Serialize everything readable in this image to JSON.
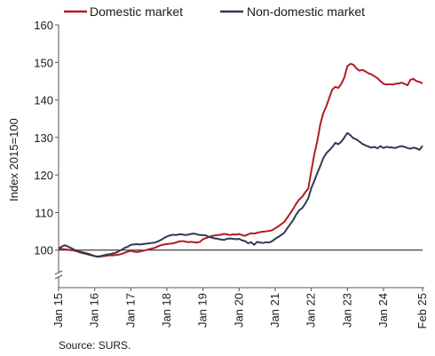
{
  "chart_data": {
    "type": "line",
    "ylabel": "Index 2015=100",
    "ylim": [
      90,
      160
    ],
    "yticks": [
      100,
      110,
      120,
      130,
      140,
      150,
      160
    ],
    "x_ticks": [
      "Jan 15",
      "Jan 16",
      "Jan 17",
      "Jan 18",
      "Jan 19",
      "Jan 20",
      "Jan 21",
      "Jan 22",
      "Jan 23",
      "Jan 24",
      "Feb 25"
    ],
    "reference_line": 100,
    "axis_break": true,
    "legend_position": "top",
    "series": [
      {
        "name": "Domestic market",
        "color": "#b01c22",
        "points": [
          [
            "2015-01",
            100.5
          ],
          [
            "2015-02",
            100.3
          ],
          [
            "2015-03",
            100.2
          ],
          [
            "2015-04",
            100.1
          ],
          [
            "2015-05",
            100.0
          ],
          [
            "2015-06",
            99.9
          ],
          [
            "2015-07",
            99.7
          ],
          [
            "2015-08",
            99.4
          ],
          [
            "2015-09",
            99.2
          ],
          [
            "2015-10",
            99.0
          ],
          [
            "2015-11",
            98.8
          ],
          [
            "2015-12",
            98.6
          ],
          [
            "2016-01",
            98.4
          ],
          [
            "2016-02",
            98.2
          ],
          [
            "2016-03",
            98.3
          ],
          [
            "2016-04",
            98.4
          ],
          [
            "2016-05",
            98.5
          ],
          [
            "2016-06",
            98.6
          ],
          [
            "2016-07",
            98.6
          ],
          [
            "2016-08",
            98.7
          ],
          [
            "2016-09",
            98.8
          ],
          [
            "2016-10",
            99.0
          ],
          [
            "2016-11",
            99.3
          ],
          [
            "2016-12",
            99.6
          ],
          [
            "2017-01",
            99.8
          ],
          [
            "2017-02",
            99.6
          ],
          [
            "2017-03",
            99.5
          ],
          [
            "2017-04",
            99.6
          ],
          [
            "2017-05",
            99.8
          ],
          [
            "2017-06",
            100.0
          ],
          [
            "2017-07",
            100.2
          ],
          [
            "2017-08",
            100.4
          ],
          [
            "2017-09",
            100.6
          ],
          [
            "2017-10",
            101.0
          ],
          [
            "2017-11",
            101.3
          ],
          [
            "2017-12",
            101.5
          ],
          [
            "2018-01",
            101.6
          ],
          [
            "2018-02",
            101.7
          ],
          [
            "2018-03",
            101.8
          ],
          [
            "2018-04",
            102.0
          ],
          [
            "2018-05",
            102.3
          ],
          [
            "2018-06",
            102.4
          ],
          [
            "2018-07",
            102.3
          ],
          [
            "2018-08",
            102.1
          ],
          [
            "2018-09",
            102.2
          ],
          [
            "2018-10",
            102.1
          ],
          [
            "2018-11",
            102.0
          ],
          [
            "2018-12",
            102.2
          ],
          [
            "2019-01",
            102.9
          ],
          [
            "2019-02",
            103.2
          ],
          [
            "2019-03",
            103.5
          ],
          [
            "2019-04",
            103.8
          ],
          [
            "2019-05",
            103.9
          ],
          [
            "2019-06",
            104.0
          ],
          [
            "2019-07",
            104.1
          ],
          [
            "2019-08",
            104.3
          ],
          [
            "2019-09",
            104.2
          ],
          [
            "2019-10",
            104.0
          ],
          [
            "2019-11",
            104.2
          ],
          [
            "2019-12",
            104.1
          ],
          [
            "2020-01",
            104.3
          ],
          [
            "2020-02",
            104.0
          ],
          [
            "2020-03",
            103.8
          ],
          [
            "2020-04",
            104.2
          ],
          [
            "2020-05",
            104.5
          ],
          [
            "2020-06",
            104.4
          ],
          [
            "2020-07",
            104.6
          ],
          [
            "2020-08",
            104.8
          ],
          [
            "2020-09",
            104.9
          ],
          [
            "2020-10",
            105.0
          ],
          [
            "2020-11",
            105.1
          ],
          [
            "2020-12",
            105.3
          ],
          [
            "2021-01",
            105.8
          ],
          [
            "2021-02",
            106.3
          ],
          [
            "2021-03",
            106.9
          ],
          [
            "2021-04",
            107.5
          ],
          [
            "2021-05",
            108.6
          ],
          [
            "2021-06",
            109.8
          ],
          [
            "2021-07",
            111.0
          ],
          [
            "2021-08",
            112.4
          ],
          [
            "2021-09",
            113.5
          ],
          [
            "2021-10",
            114.2
          ],
          [
            "2021-11",
            115.4
          ],
          [
            "2021-12",
            116.4
          ],
          [
            "2022-01",
            121.0
          ],
          [
            "2022-02",
            125.5
          ],
          [
            "2022-03",
            129.0
          ],
          [
            "2022-04",
            133.5
          ],
          [
            "2022-05",
            136.5
          ],
          [
            "2022-06",
            138.3
          ],
          [
            "2022-07",
            140.6
          ],
          [
            "2022-08",
            142.8
          ],
          [
            "2022-09",
            143.5
          ],
          [
            "2022-10",
            143.2
          ],
          [
            "2022-11",
            144.3
          ],
          [
            "2022-12",
            146.0
          ],
          [
            "2023-01",
            149.0
          ],
          [
            "2023-02",
            149.6
          ],
          [
            "2023-03",
            149.4
          ],
          [
            "2023-04",
            148.4
          ],
          [
            "2023-05",
            147.8
          ],
          [
            "2023-06",
            148.0
          ],
          [
            "2023-07",
            147.6
          ],
          [
            "2023-08",
            147.1
          ],
          [
            "2023-09",
            146.8
          ],
          [
            "2023-10",
            146.3
          ],
          [
            "2023-11",
            145.8
          ],
          [
            "2023-12",
            145.0
          ],
          [
            "2024-01",
            144.3
          ],
          [
            "2024-02",
            144.1
          ],
          [
            "2024-03",
            144.2
          ],
          [
            "2024-04",
            144.1
          ],
          [
            "2024-05",
            144.3
          ],
          [
            "2024-06",
            144.4
          ],
          [
            "2024-07",
            144.6
          ],
          [
            "2024-08",
            144.3
          ],
          [
            "2024-09",
            143.9
          ],
          [
            "2024-10",
            145.4
          ],
          [
            "2024-11",
            145.6
          ],
          [
            "2024-12",
            145.0
          ],
          [
            "2025-01",
            144.8
          ],
          [
            "2025-02",
            144.4
          ]
        ]
      },
      {
        "name": "Non-domestic market",
        "color": "#2e3a55",
        "points": [
          [
            "2015-01",
            100.4
          ],
          [
            "2015-02",
            100.9
          ],
          [
            "2015-03",
            101.3
          ],
          [
            "2015-04",
            101.0
          ],
          [
            "2015-05",
            100.6
          ],
          [
            "2015-06",
            100.2
          ],
          [
            "2015-07",
            99.8
          ],
          [
            "2015-08",
            99.6
          ],
          [
            "2015-09",
            99.4
          ],
          [
            "2015-10",
            99.2
          ],
          [
            "2015-11",
            99.0
          ],
          [
            "2015-12",
            98.7
          ],
          [
            "2016-01",
            98.4
          ],
          [
            "2016-02",
            98.3
          ],
          [
            "2016-03",
            98.4
          ],
          [
            "2016-04",
            98.6
          ],
          [
            "2016-05",
            98.8
          ],
          [
            "2016-06",
            98.9
          ],
          [
            "2016-07",
            99.1
          ],
          [
            "2016-08",
            99.3
          ],
          [
            "2016-09",
            99.7
          ],
          [
            "2016-10",
            100.1
          ],
          [
            "2016-11",
            100.6
          ],
          [
            "2016-12",
            100.9
          ],
          [
            "2017-01",
            101.4
          ],
          [
            "2017-02",
            101.5
          ],
          [
            "2017-03",
            101.6
          ],
          [
            "2017-04",
            101.5
          ],
          [
            "2017-05",
            101.6
          ],
          [
            "2017-06",
            101.7
          ],
          [
            "2017-07",
            101.8
          ],
          [
            "2017-08",
            101.9
          ],
          [
            "2017-09",
            102.0
          ],
          [
            "2017-10",
            102.3
          ],
          [
            "2017-11",
            102.7
          ],
          [
            "2017-12",
            103.2
          ],
          [
            "2018-01",
            103.6
          ],
          [
            "2018-02",
            103.9
          ],
          [
            "2018-03",
            104.1
          ],
          [
            "2018-04",
            104.0
          ],
          [
            "2018-05",
            104.2
          ],
          [
            "2018-06",
            104.2
          ],
          [
            "2018-07",
            104.0
          ],
          [
            "2018-08",
            104.1
          ],
          [
            "2018-09",
            104.3
          ],
          [
            "2018-10",
            104.4
          ],
          [
            "2018-11",
            104.2
          ],
          [
            "2018-12",
            104.0
          ],
          [
            "2019-01",
            104.0
          ],
          [
            "2019-02",
            103.9
          ],
          [
            "2019-03",
            103.5
          ],
          [
            "2019-04",
            103.3
          ],
          [
            "2019-05",
            103.1
          ],
          [
            "2019-06",
            103.0
          ],
          [
            "2019-07",
            102.8
          ],
          [
            "2019-08",
            102.7
          ],
          [
            "2019-09",
            103.0
          ],
          [
            "2019-10",
            103.1
          ],
          [
            "2019-11",
            103.0
          ],
          [
            "2019-12",
            102.9
          ],
          [
            "2020-01",
            103.0
          ],
          [
            "2020-02",
            102.6
          ],
          [
            "2020-03",
            102.4
          ],
          [
            "2020-04",
            101.8
          ],
          [
            "2020-05",
            102.1
          ],
          [
            "2020-06",
            101.4
          ],
          [
            "2020-07",
            102.2
          ],
          [
            "2020-08",
            102.0
          ],
          [
            "2020-09",
            101.9
          ],
          [
            "2020-10",
            102.1
          ],
          [
            "2020-11",
            102.0
          ],
          [
            "2020-12",
            102.4
          ],
          [
            "2021-01",
            103.0
          ],
          [
            "2021-02",
            103.5
          ],
          [
            "2021-03",
            104.0
          ],
          [
            "2021-04",
            104.6
          ],
          [
            "2021-05",
            105.8
          ],
          [
            "2021-06",
            106.9
          ],
          [
            "2021-07",
            108.0
          ],
          [
            "2021-08",
            109.5
          ],
          [
            "2021-09",
            110.6
          ],
          [
            "2021-10",
            111.2
          ],
          [
            "2021-11",
            112.4
          ],
          [
            "2021-12",
            113.8
          ],
          [
            "2022-01",
            116.5
          ],
          [
            "2022-02",
            118.4
          ],
          [
            "2022-03",
            120.5
          ],
          [
            "2022-04",
            122.4
          ],
          [
            "2022-05",
            124.5
          ],
          [
            "2022-06",
            125.8
          ],
          [
            "2022-07",
            126.6
          ],
          [
            "2022-08",
            127.5
          ],
          [
            "2022-09",
            128.6
          ],
          [
            "2022-10",
            128.2
          ],
          [
            "2022-11",
            128.9
          ],
          [
            "2022-12",
            130.0
          ],
          [
            "2023-01",
            131.2
          ],
          [
            "2023-02",
            130.6
          ],
          [
            "2023-03",
            129.8
          ],
          [
            "2023-04",
            129.5
          ],
          [
            "2023-05",
            128.9
          ],
          [
            "2023-06",
            128.3
          ],
          [
            "2023-07",
            127.9
          ],
          [
            "2023-08",
            127.6
          ],
          [
            "2023-09",
            127.3
          ],
          [
            "2023-10",
            127.5
          ],
          [
            "2023-11",
            127.1
          ],
          [
            "2023-12",
            127.7
          ],
          [
            "2024-01",
            127.2
          ],
          [
            "2024-02",
            127.5
          ],
          [
            "2024-03",
            127.4
          ],
          [
            "2024-04",
            127.3
          ],
          [
            "2024-05",
            127.2
          ],
          [
            "2024-06",
            127.5
          ],
          [
            "2024-07",
            127.7
          ],
          [
            "2024-08",
            127.5
          ],
          [
            "2024-09",
            127.2
          ],
          [
            "2024-10",
            127.0
          ],
          [
            "2024-11",
            127.3
          ],
          [
            "2024-12",
            127.1
          ],
          [
            "2025-01",
            126.7
          ],
          [
            "2025-02",
            127.8
          ]
        ]
      }
    ]
  },
  "footer": {
    "source": "Source: SURS."
  }
}
